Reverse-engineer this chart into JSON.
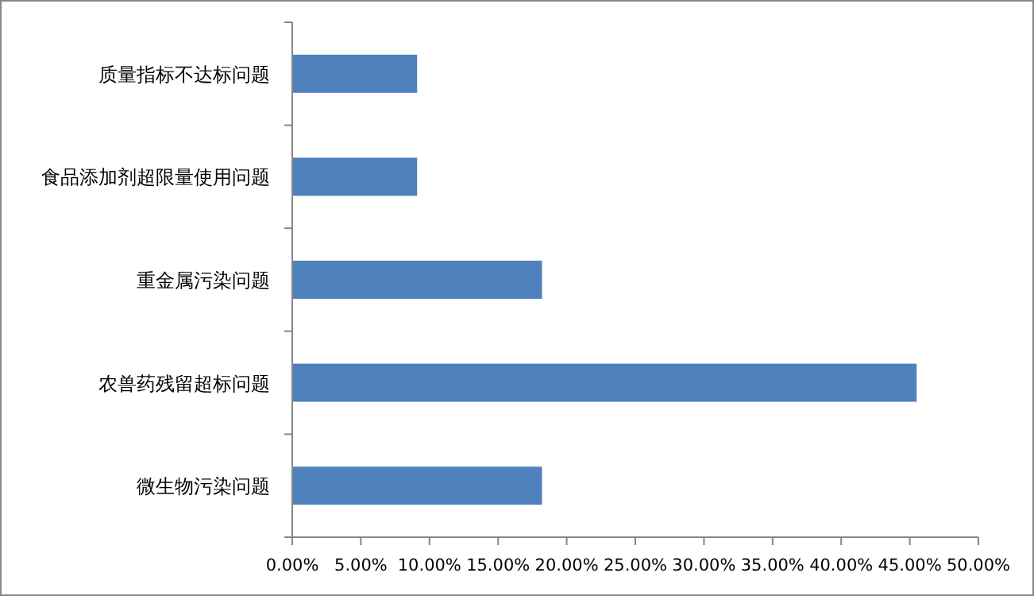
{
  "chart_data": {
    "type": "bar",
    "orientation": "horizontal",
    "categories": [
      "质量指标不达标问题",
      "食品添加剂超限量使用问题",
      "重金属污染问题",
      "农兽药残留超标问题",
      "微生物污染问题"
    ],
    "values": [
      9.1,
      9.1,
      18.2,
      45.5,
      18.2
    ],
    "color": "#4f81bd",
    "xlim": [
      0,
      50
    ],
    "xticks": [
      {
        "value": 0,
        "label": "0.00%"
      },
      {
        "value": 5,
        "label": "5.00%"
      },
      {
        "value": 10,
        "label": "10.00%"
      },
      {
        "value": 15,
        "label": "15.00%"
      },
      {
        "value": 20,
        "label": "20.00%"
      },
      {
        "value": 25,
        "label": "25.00%"
      },
      {
        "value": 30,
        "label": "30.00%"
      },
      {
        "value": 35,
        "label": "35.00%"
      },
      {
        "value": 40,
        "label": "40.00%"
      },
      {
        "value": 45,
        "label": "45.00%"
      },
      {
        "value": 50,
        "label": "50.00%"
      }
    ],
    "grid": false
  }
}
